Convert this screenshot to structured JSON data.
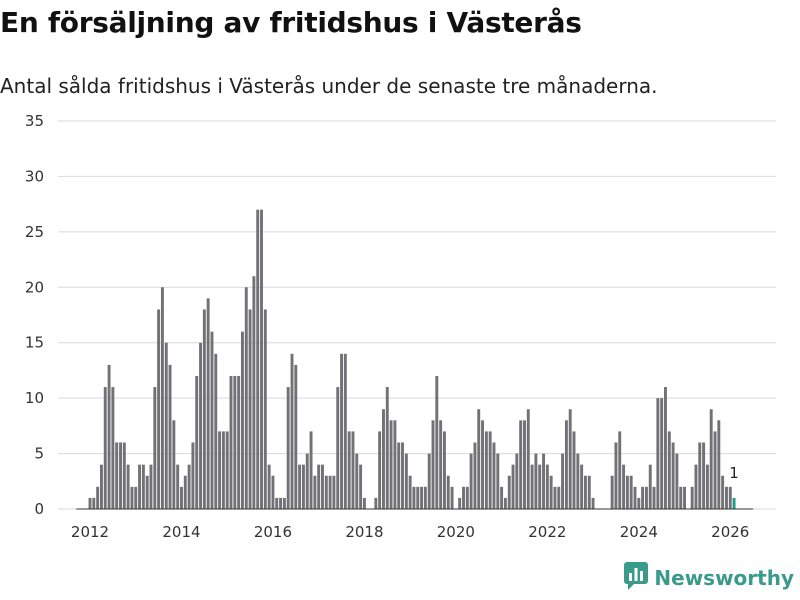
{
  "title": "En försäljning av fritidshus i Västerås",
  "subtitle": "Antal sålda fritidshus i Västerås under de senaste tre månaderna.",
  "brand": "Newsworthy",
  "colors": {
    "bar": "#717176",
    "highlight": "#1f9c8e",
    "brand": "#3a9a8c",
    "grid": "#d9d9d9"
  },
  "chart_data": {
    "type": "bar",
    "title": "En försäljning av fritidshus i Västerås",
    "xlabel": "",
    "ylabel": "",
    "ylim": [
      0,
      35
    ],
    "yticks": [
      0,
      5,
      10,
      15,
      20,
      25,
      30,
      35
    ],
    "xlim": [
      2011.3,
      2027.0
    ],
    "xticks": [
      2012,
      2014,
      2016,
      2018,
      2020,
      2022,
      2024,
      2026
    ],
    "grid": true,
    "last_value_label": "1",
    "x": [
      2012.0,
      2012.083,
      2012.167,
      2012.25,
      2012.333,
      2012.417,
      2012.5,
      2012.583,
      2012.667,
      2012.75,
      2012.833,
      2012.917,
      2013.0,
      2013.083,
      2013.167,
      2013.25,
      2013.333,
      2013.417,
      2013.5,
      2013.583,
      2013.667,
      2013.75,
      2013.833,
      2013.917,
      2014.0,
      2014.083,
      2014.167,
      2014.25,
      2014.333,
      2014.417,
      2014.5,
      2014.583,
      2014.667,
      2014.75,
      2014.833,
      2014.917,
      2015.0,
      2015.083,
      2015.167,
      2015.25,
      2015.333,
      2015.417,
      2015.5,
      2015.583,
      2015.667,
      2015.75,
      2015.833,
      2015.917,
      2016.0,
      2016.083,
      2016.167,
      2016.25,
      2016.333,
      2016.417,
      2016.5,
      2016.583,
      2016.667,
      2016.75,
      2016.833,
      2016.917,
      2017.0,
      2017.083,
      2017.167,
      2017.25,
      2017.333,
      2017.417,
      2017.5,
      2017.583,
      2017.667,
      2017.75,
      2017.833,
      2017.917,
      2018.0,
      2018.083,
      2018.167,
      2018.25,
      2018.333,
      2018.417,
      2018.5,
      2018.583,
      2018.667,
      2018.75,
      2018.833,
      2018.917,
      2019.0,
      2019.083,
      2019.167,
      2019.25,
      2019.333,
      2019.417,
      2019.5,
      2019.583,
      2019.667,
      2019.75,
      2019.833,
      2019.917,
      2020.0,
      2020.083,
      2020.167,
      2020.25,
      2020.333,
      2020.417,
      2020.5,
      2020.583,
      2020.667,
      2020.75,
      2020.833,
      2020.917,
      2021.0,
      2021.083,
      2021.167,
      2021.25,
      2021.333,
      2021.417,
      2021.5,
      2021.583,
      2021.667,
      2021.75,
      2021.833,
      2021.917,
      2022.0,
      2022.083,
      2022.167,
      2022.25,
      2022.333,
      2022.417,
      2022.5,
      2022.583,
      2022.667,
      2022.75,
      2022.833,
      2022.917,
      2023.0,
      2023.083,
      2023.167,
      2023.25,
      2023.333,
      2023.417,
      2023.5,
      2023.583,
      2023.667,
      2023.75,
      2023.833,
      2023.917,
      2024.0,
      2024.083,
      2024.167,
      2024.25,
      2024.333,
      2024.417,
      2024.5,
      2024.583,
      2024.667,
      2024.75,
      2024.833,
      2024.917,
      2025.0,
      2025.083,
      2025.167,
      2025.25,
      2025.333,
      2025.417,
      2025.5,
      2025.583,
      2025.667,
      2025.75,
      2025.833,
      2025.917,
      2026.0,
      2026.083
    ],
    "values": [
      1,
      1,
      2,
      4,
      11,
      13,
      11,
      6,
      6,
      6,
      4,
      2,
      2,
      4,
      4,
      3,
      4,
      11,
      18,
      20,
      15,
      13,
      8,
      4,
      2,
      3,
      4,
      6,
      12,
      15,
      18,
      19,
      16,
      14,
      7,
      7,
      7,
      12,
      12,
      12,
      16,
      20,
      18,
      21,
      27,
      27,
      18,
      4,
      3,
      1,
      1,
      1,
      11,
      14,
      13,
      4,
      4,
      5,
      7,
      3,
      4,
      4,
      3,
      3,
      3,
      11,
      14,
      14,
      7,
      7,
      5,
      4,
      1,
      0,
      0,
      1,
      7,
      9,
      11,
      8,
      8,
      6,
      6,
      5,
      3,
      2,
      2,
      2,
      2,
      5,
      8,
      12,
      8,
      7,
      3,
      2,
      0,
      1,
      2,
      2,
      5,
      6,
      9,
      8,
      7,
      7,
      6,
      5,
      2,
      1,
      3,
      4,
      5,
      8,
      8,
      9,
      4,
      5,
      4,
      5,
      4,
      3,
      2,
      2,
      5,
      8,
      9,
      7,
      5,
      4,
      3,
      3,
      1,
      0,
      0,
      0,
      0,
      3,
      6,
      7,
      4,
      3,
      3,
      2,
      1,
      2,
      2,
      4,
      2,
      10,
      10,
      11,
      7,
      6,
      5,
      2,
      2,
      0,
      2,
      4,
      6,
      6,
      4,
      9,
      7,
      8,
      3,
      2,
      2,
      1
    ]
  }
}
